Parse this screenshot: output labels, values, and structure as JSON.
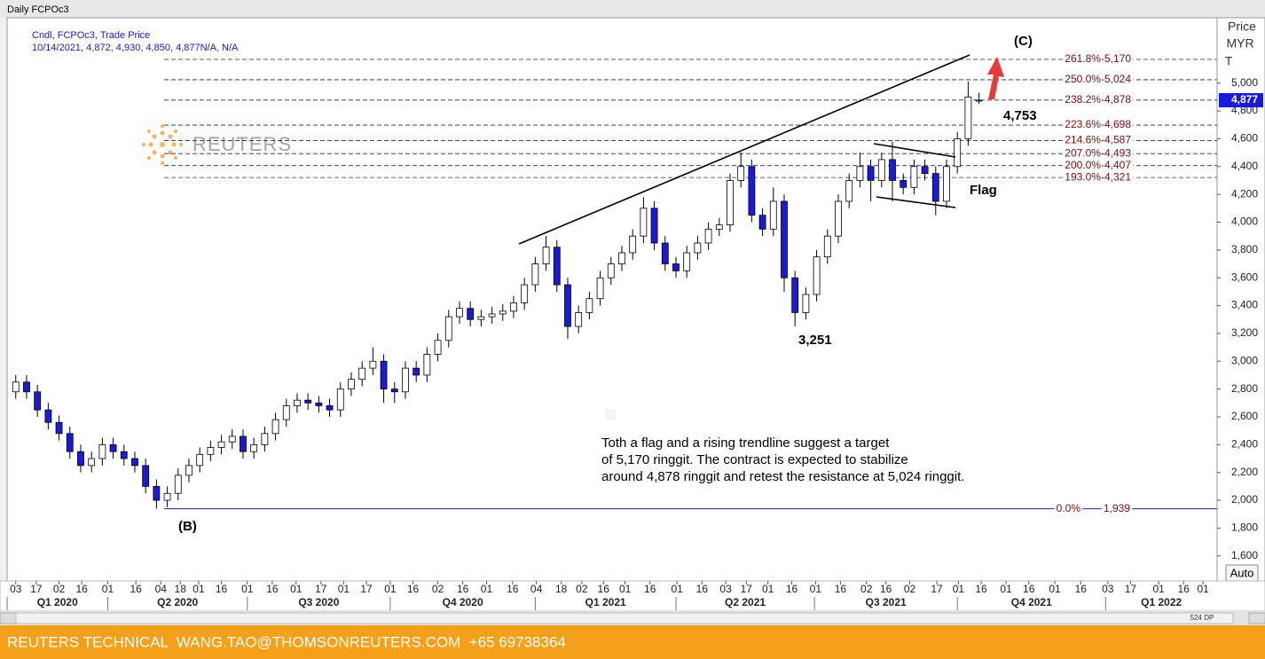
{
  "header": "Daily FCPOc3",
  "footer": "REUTERS TECHNICAL  WANG.TAO@THOMSONREUTERS.COM  +65 69738364",
  "scrollbar_label": "524 DP",
  "auto_button": "Auto",
  "watermark": "REUTERS",
  "chart_data": {
    "type": "candlestick",
    "info": [
      "Cndl, FCPOc3, Trade Price",
      "10/14/2021, 4,872, 4,930, 4,850, 4,877N/A, N/A"
    ],
    "y_label": [
      "Price",
      "MYR",
      "T"
    ],
    "up_color": "#ffffff",
    "down_color": "#1a1adb",
    "wick_color": "#000000",
    "open": [
      2780,
      2850,
      2780,
      2650,
      2560,
      2480,
      2350,
      2250,
      2300,
      2400,
      2350,
      2300,
      2250,
      2100,
      2000,
      2050,
      2180,
      2250,
      2330,
      2380,
      2420,
      2460,
      2350,
      2400,
      2480,
      2580,
      2680,
      2720,
      2700,
      2680,
      2650,
      2800,
      2870,
      2950,
      3000,
      2800,
      2780,
      2950,
      2900,
      3050,
      3150,
      3320,
      3380,
      3300,
      3320,
      3340,
      3360,
      3420,
      3550,
      3700,
      3820,
      3550,
      3250,
      3350,
      3450,
      3600,
      3700,
      3780,
      3900,
      4100,
      3850,
      3700,
      3650,
      3780,
      3850,
      3950,
      3980,
      4300,
      4400,
      4050,
      3950,
      4150,
      3600,
      3350,
      3480,
      3750,
      3900,
      4150,
      4300,
      4400,
      4300,
      4450,
      4300,
      4250,
      4400,
      4350,
      4150,
      4400,
      4600,
      4872
    ],
    "high": [
      2900,
      2900,
      2830,
      2700,
      2610,
      2530,
      2400,
      2350,
      2450,
      2450,
      2400,
      2350,
      2300,
      2150,
      2100,
      2230,
      2300,
      2380,
      2430,
      2470,
      2510,
      2510,
      2450,
      2530,
      2630,
      2730,
      2770,
      2770,
      2750,
      2730,
      2850,
      2920,
      3000,
      3100,
      3050,
      2850,
      3000,
      3000,
      3100,
      3200,
      3370,
      3430,
      3430,
      3370,
      3390,
      3410,
      3470,
      3600,
      3750,
      3900,
      3870,
      3600,
      3400,
      3500,
      3650,
      3750,
      3830,
      3950,
      4180,
      4150,
      3900,
      3750,
      3830,
      3900,
      4000,
      4030,
      4350,
      4500,
      4450,
      4100,
      4250,
      4200,
      3650,
      3530,
      3800,
      3950,
      4200,
      4350,
      4500,
      4450,
      4500,
      4580,
      4350,
      4450,
      4450,
      4400,
      4450,
      4650,
      5010,
      4930
    ],
    "low": [
      2730,
      2730,
      2600,
      2510,
      2430,
      2300,
      2200,
      2200,
      2250,
      2300,
      2250,
      2200,
      2050,
      1939,
      1950,
      2000,
      2130,
      2200,
      2280,
      2330,
      2370,
      2300,
      2300,
      2350,
      2430,
      2530,
      2630,
      2650,
      2630,
      2600,
      2600,
      2750,
      2820,
      2900,
      2700,
      2700,
      2730,
      2850,
      2850,
      3000,
      3100,
      3270,
      3250,
      3250,
      3270,
      3290,
      3310,
      3370,
      3500,
      3650,
      3500,
      3160,
      3200,
      3300,
      3400,
      3550,
      3650,
      3730,
      3850,
      3800,
      3650,
      3600,
      3600,
      3730,
      3800,
      3900,
      3930,
      4250,
      4000,
      3900,
      3900,
      3500,
      3251,
      3300,
      3430,
      3700,
      3850,
      4100,
      4250,
      4150,
      4250,
      4150,
      4200,
      4200,
      4300,
      4050,
      4100,
      4350,
      4550,
      4850
    ],
    "close": [
      2850,
      2780,
      2650,
      2560,
      2480,
      2350,
      2250,
      2300,
      2400,
      2350,
      2300,
      2250,
      2100,
      2000,
      2050,
      2180,
      2250,
      2330,
      2380,
      2420,
      2460,
      2350,
      2400,
      2480,
      2580,
      2680,
      2720,
      2700,
      2680,
      2650,
      2800,
      2870,
      2950,
      3000,
      2800,
      2780,
      2950,
      2900,
      3050,
      3150,
      3320,
      3380,
      3300,
      3320,
      3340,
      3360,
      3420,
      3550,
      3700,
      3820,
      3550,
      3250,
      3350,
      3450,
      3600,
      3700,
      3780,
      3900,
      4100,
      3850,
      3700,
      3650,
      3780,
      3850,
      3950,
      3980,
      4300,
      4400,
      4050,
      3950,
      4150,
      3600,
      3350,
      3480,
      3750,
      3900,
      4150,
      4300,
      4400,
      4300,
      4450,
      4300,
      4250,
      4400,
      4350,
      4150,
      4400,
      4600,
      4900,
      4877
    ],
    "last_price": {
      "value": 4877,
      "label": "4,877"
    },
    "xlim": [
      -0.8,
      111
    ],
    "ylim": [
      1420,
      5470
    ],
    "yticks": [
      {
        "value": 1600,
        "label": "1,600"
      },
      {
        "value": 1800,
        "label": "1,800"
      },
      {
        "value": 2000,
        "label": "2,000"
      },
      {
        "value": 2200,
        "label": "2,200"
      },
      {
        "value": 2400,
        "label": "2,400"
      },
      {
        "value": 2600,
        "label": "2,600"
      },
      {
        "value": 2800,
        "label": "2,800"
      },
      {
        "value": 3000,
        "label": "3,000"
      },
      {
        "value": 3200,
        "label": "3,200"
      },
      {
        "value": 3400,
        "label": "3,400"
      },
      {
        "value": 3600,
        "label": "3,600"
      },
      {
        "value": 3800,
        "label": "3,800"
      },
      {
        "value": 4000,
        "label": "4,000"
      },
      {
        "value": 4200,
        "label": "4,200"
      },
      {
        "value": 4400,
        "label": "4,400"
      },
      {
        "value": 4600,
        "label": "4,600"
      },
      {
        "value": 4800,
        "label": "4,800"
      },
      {
        "value": 5000,
        "label": "5,000"
      }
    ],
    "xticks": [
      {
        "value": 0,
        "label": "03"
      },
      {
        "value": 1.9,
        "label": "17"
      },
      {
        "value": 4.0,
        "label": "02"
      },
      {
        "value": 6.1,
        "label": "16"
      },
      {
        "value": 8.5,
        "label": "01"
      },
      {
        "value": 11.1,
        "label": "16"
      },
      {
        "value": 13.4,
        "label": "04"
      },
      {
        "value": 15.2,
        "label": "18"
      },
      {
        "value": 16.9,
        "label": "01"
      },
      {
        "value": 19.0,
        "label": "16"
      },
      {
        "value": 21.4,
        "label": "01"
      },
      {
        "value": 23.7,
        "label": "16"
      },
      {
        "value": 25.9,
        "label": "01"
      },
      {
        "value": 28.2,
        "label": "17"
      },
      {
        "value": 30.3,
        "label": "01"
      },
      {
        "value": 32.4,
        "label": "17"
      },
      {
        "value": 34.6,
        "label": "01"
      },
      {
        "value": 36.7,
        "label": "16"
      },
      {
        "value": 39.0,
        "label": "02"
      },
      {
        "value": 41.3,
        "label": "16"
      },
      {
        "value": 43.5,
        "label": "01"
      },
      {
        "value": 45.9,
        "label": "16"
      },
      {
        "value": 48.1,
        "label": "04"
      },
      {
        "value": 50.4,
        "label": "18"
      },
      {
        "value": 52.3,
        "label": "02"
      },
      {
        "value": 54.3,
        "label": "16"
      },
      {
        "value": 56.3,
        "label": "01"
      },
      {
        "value": 58.6,
        "label": "16"
      },
      {
        "value": 61.1,
        "label": "01"
      },
      {
        "value": 63.4,
        "label": "16"
      },
      {
        "value": 65.6,
        "label": "03"
      },
      {
        "value": 67.5,
        "label": "17"
      },
      {
        "value": 69.5,
        "label": "01"
      },
      {
        "value": 71.7,
        "label": "16"
      },
      {
        "value": 73.9,
        "label": "01"
      },
      {
        "value": 76.2,
        "label": "16"
      },
      {
        "value": 78.6,
        "label": "02"
      },
      {
        "value": 80.4,
        "label": "16"
      },
      {
        "value": 82.6,
        "label": "02"
      },
      {
        "value": 85.1,
        "label": "17"
      },
      {
        "value": 87.1,
        "label": "01"
      },
      {
        "value": 89.2,
        "label": "16"
      },
      {
        "value": 91.5,
        "label": "01"
      },
      {
        "value": 93.6,
        "label": "16"
      },
      {
        "value": 96.0,
        "label": "01"
      },
      {
        "value": 98.4,
        "label": "16"
      },
      {
        "value": 100.9,
        "label": "03"
      },
      {
        "value": 103.0,
        "label": "17"
      },
      {
        "value": 105.6,
        "label": "01"
      },
      {
        "value": 107.9,
        "label": "16"
      },
      {
        "value": 109.7,
        "label": "01"
      }
    ],
    "quarters": [
      {
        "label": "Q1 2020",
        "start": -0.8,
        "end": 8.5
      },
      {
        "label": "Q2 2020",
        "start": 8.5,
        "end": 21.4
      },
      {
        "label": "Q3 2020",
        "start": 21.4,
        "end": 34.6
      },
      {
        "label": "Q4 2020",
        "start": 34.6,
        "end": 48.0
      },
      {
        "label": "Q1 2021",
        "start": 48.0,
        "end": 61.0
      },
      {
        "label": "Q2 2021",
        "start": 61.0,
        "end": 73.8
      },
      {
        "label": "Q3 2021",
        "start": 73.8,
        "end": 87.0
      },
      {
        "label": "Q4 2021",
        "start": 87.0,
        "end": 100.7
      },
      {
        "label": "Q1 2022",
        "start": 100.7,
        "end": 111
      }
    ],
    "fib_levels": [
      {
        "label": "261.8%-5,170",
        "value": 5170
      },
      {
        "label": "250.0%-5,024",
        "value": 5024
      },
      {
        "label": "238.2%-4,878",
        "value": 4878
      },
      {
        "label": "223.6%-4,698",
        "value": 4698
      },
      {
        "label": "214.6%-4,587",
        "value": 4587
      },
      {
        "label": "207.0%-4,493",
        "value": 4493
      },
      {
        "label": "200.0%-4,407",
        "value": 4407
      },
      {
        "label": "193.0%-4,321",
        "value": 4321
      }
    ],
    "base_level": {
      "label": "0.0%",
      "price_label": "1,939",
      "value": 1939
    },
    "annotations": [
      "(C)",
      "4,753",
      "3,251",
      "Flag",
      "(B)"
    ],
    "note": [
      "Toth a flag and a rising trendline suggest a target",
      "of 5,170 ringgit. The contract is expected to stabilize",
      "around 4,878 ringgit and retest the resistance at 5,024 ringgit."
    ]
  }
}
